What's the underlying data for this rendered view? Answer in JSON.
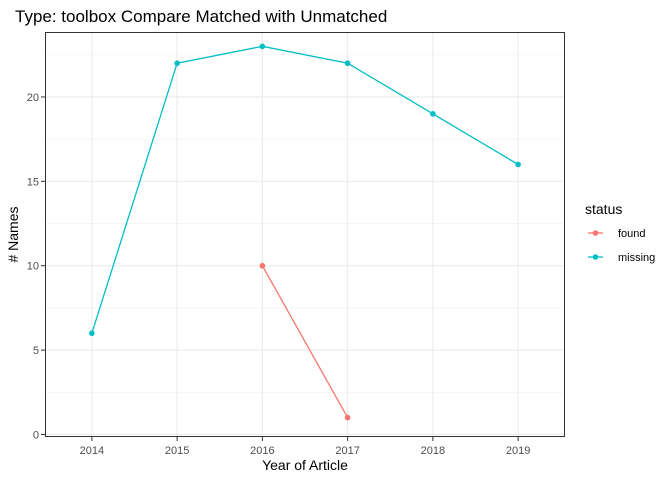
{
  "chart_data": {
    "type": "line",
    "title": "Type: toolbox Compare Matched with Unmatched",
    "xlabel": "Year of Article",
    "ylabel": "# Names",
    "x_ticks": [
      "2014",
      "2015",
      "2016",
      "2017",
      "2018",
      "2019"
    ],
    "y_ticks": [
      "0",
      "5",
      "10",
      "15",
      "20"
    ],
    "xlim": [
      2013.45,
      2019.55
    ],
    "ylim": [
      -0.15,
      23.85
    ],
    "grid": true,
    "legend": {
      "title": "status",
      "position": "right"
    },
    "series": [
      {
        "name": "found",
        "color": "#f8766d",
        "x": [
          2016,
          2017
        ],
        "y": [
          10,
          1
        ]
      },
      {
        "name": "missing",
        "color": "#00bfc4",
        "x": [
          2014,
          2015,
          2016,
          2017,
          2018,
          2019
        ],
        "y": [
          6,
          22,
          23,
          22,
          19,
          16
        ]
      }
    ]
  }
}
